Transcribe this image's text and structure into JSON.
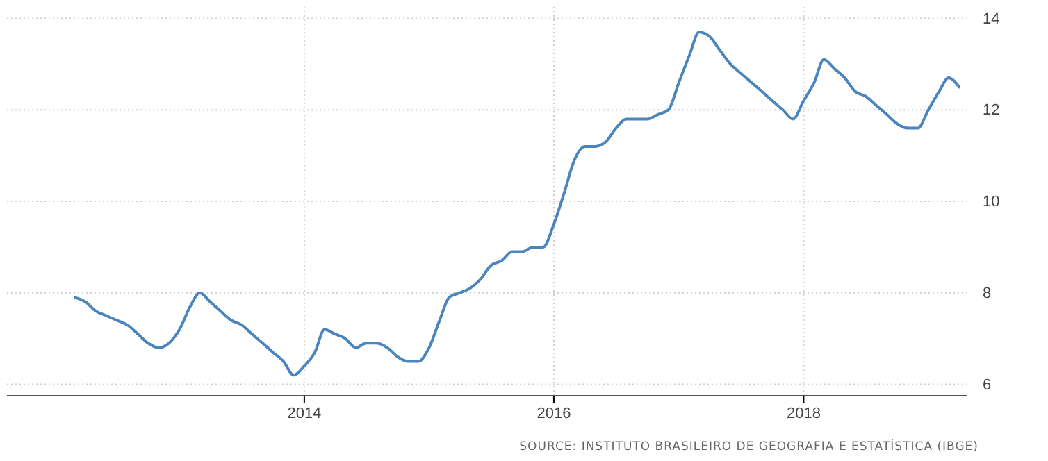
{
  "chart_data": {
    "type": "line",
    "x": [
      "2012-03",
      "2012-04",
      "2012-05",
      "2012-06",
      "2012-07",
      "2012-08",
      "2012-09",
      "2012-10",
      "2012-11",
      "2012-12",
      "2013-01",
      "2013-02",
      "2013-03",
      "2013-04",
      "2013-05",
      "2013-06",
      "2013-07",
      "2013-08",
      "2013-09",
      "2013-10",
      "2013-11",
      "2013-12",
      "2014-01",
      "2014-02",
      "2014-03",
      "2014-04",
      "2014-05",
      "2014-06",
      "2014-07",
      "2014-08",
      "2014-09",
      "2014-10",
      "2014-11",
      "2014-12",
      "2015-01",
      "2015-02",
      "2015-03",
      "2015-04",
      "2015-05",
      "2015-06",
      "2015-07",
      "2015-08",
      "2015-09",
      "2015-10",
      "2015-11",
      "2015-12",
      "2016-01",
      "2016-02",
      "2016-03",
      "2016-04",
      "2016-05",
      "2016-06",
      "2016-07",
      "2016-08",
      "2016-09",
      "2016-10",
      "2016-11",
      "2016-12",
      "2017-01",
      "2017-02",
      "2017-03",
      "2017-04",
      "2017-05",
      "2017-06",
      "2017-07",
      "2017-08",
      "2017-09",
      "2017-10",
      "2017-11",
      "2017-12",
      "2018-01",
      "2018-02",
      "2018-03",
      "2018-04",
      "2018-05",
      "2018-06",
      "2018-07",
      "2018-08",
      "2018-09",
      "2018-10",
      "2018-11",
      "2018-12",
      "2019-01",
      "2019-02",
      "2019-03",
      "2019-04"
    ],
    "series": [
      {
        "color": "#4a85bd",
        "values": [
          7.9,
          7.8,
          7.6,
          7.5,
          7.4,
          7.3,
          7.1,
          6.9,
          6.8,
          6.9,
          7.2,
          7.7,
          8.0,
          7.8,
          7.6,
          7.4,
          7.3,
          7.1,
          6.9,
          6.7,
          6.5,
          6.2,
          6.4,
          6.7,
          7.2,
          7.1,
          7.0,
          6.8,
          6.9,
          6.9,
          6.8,
          6.6,
          6.5,
          6.5,
          6.8,
          7.4,
          7.9,
          8.0,
          8.1,
          8.3,
          8.6,
          8.7,
          8.9,
          8.9,
          9.0,
          9.0,
          9.5,
          10.2,
          10.9,
          11.2,
          11.2,
          11.3,
          11.6,
          11.8,
          11.8,
          11.8,
          11.9,
          12.0,
          12.6,
          13.2,
          13.7,
          13.6,
          13.3,
          13.0,
          12.8,
          12.6,
          12.4,
          12.2,
          12.0,
          11.8,
          12.2,
          12.6,
          13.1,
          12.9,
          12.7,
          12.4,
          12.3,
          12.1,
          11.9,
          11.7,
          11.6,
          11.6,
          12.0,
          12.4,
          12.7,
          12.5
        ]
      }
    ],
    "xlim": [
      "2011-08-15",
      "2019-04-25"
    ],
    "xticks": [
      "2014",
      "2016",
      "2018"
    ],
    "ylim": [
      5.75,
      14.25
    ],
    "yticks": [
      6,
      8,
      10,
      12,
      14
    ],
    "grid": true,
    "legend": false,
    "marker": "none",
    "line_style": "solid",
    "annotations": [
      "SOURCE: INSTITUTO BRASILEIRO DE GEOGRAFIA E ESTATÍSTICA (IBGE)"
    ]
  }
}
